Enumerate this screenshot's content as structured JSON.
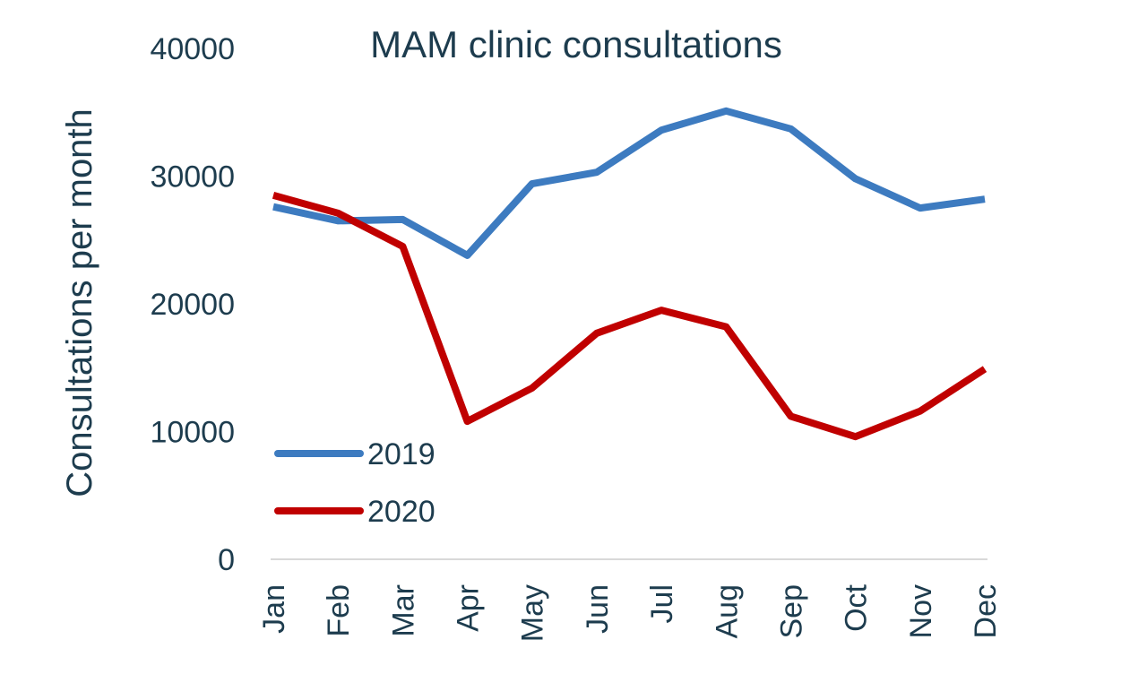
{
  "chart_data": {
    "type": "line",
    "title": "MAM clinic consultations",
    "xlabel": "",
    "ylabel": "Consultations per month",
    "categories": [
      "Jan",
      "Feb",
      "Mar",
      "Apr",
      "May",
      "Jun",
      "Jul",
      "Aug",
      "Sep",
      "Oct",
      "Nov",
      "Dec"
    ],
    "ylim": [
      0,
      40000
    ],
    "yticks": [
      0,
      10000,
      20000,
      30000,
      40000
    ],
    "grid": false,
    "legend_position": "bottom-left",
    "series": [
      {
        "name": "2019",
        "color": "#3d7bc0",
        "values": [
          27600,
          26500,
          26600,
          23800,
          29400,
          30300,
          33600,
          35100,
          33700,
          29800,
          27500,
          28200
        ]
      },
      {
        "name": "2020",
        "color": "#c00000",
        "values": [
          28500,
          27100,
          24500,
          10800,
          13400,
          17700,
          19500,
          18200,
          11200,
          9600,
          11600,
          14900
        ]
      }
    ]
  }
}
